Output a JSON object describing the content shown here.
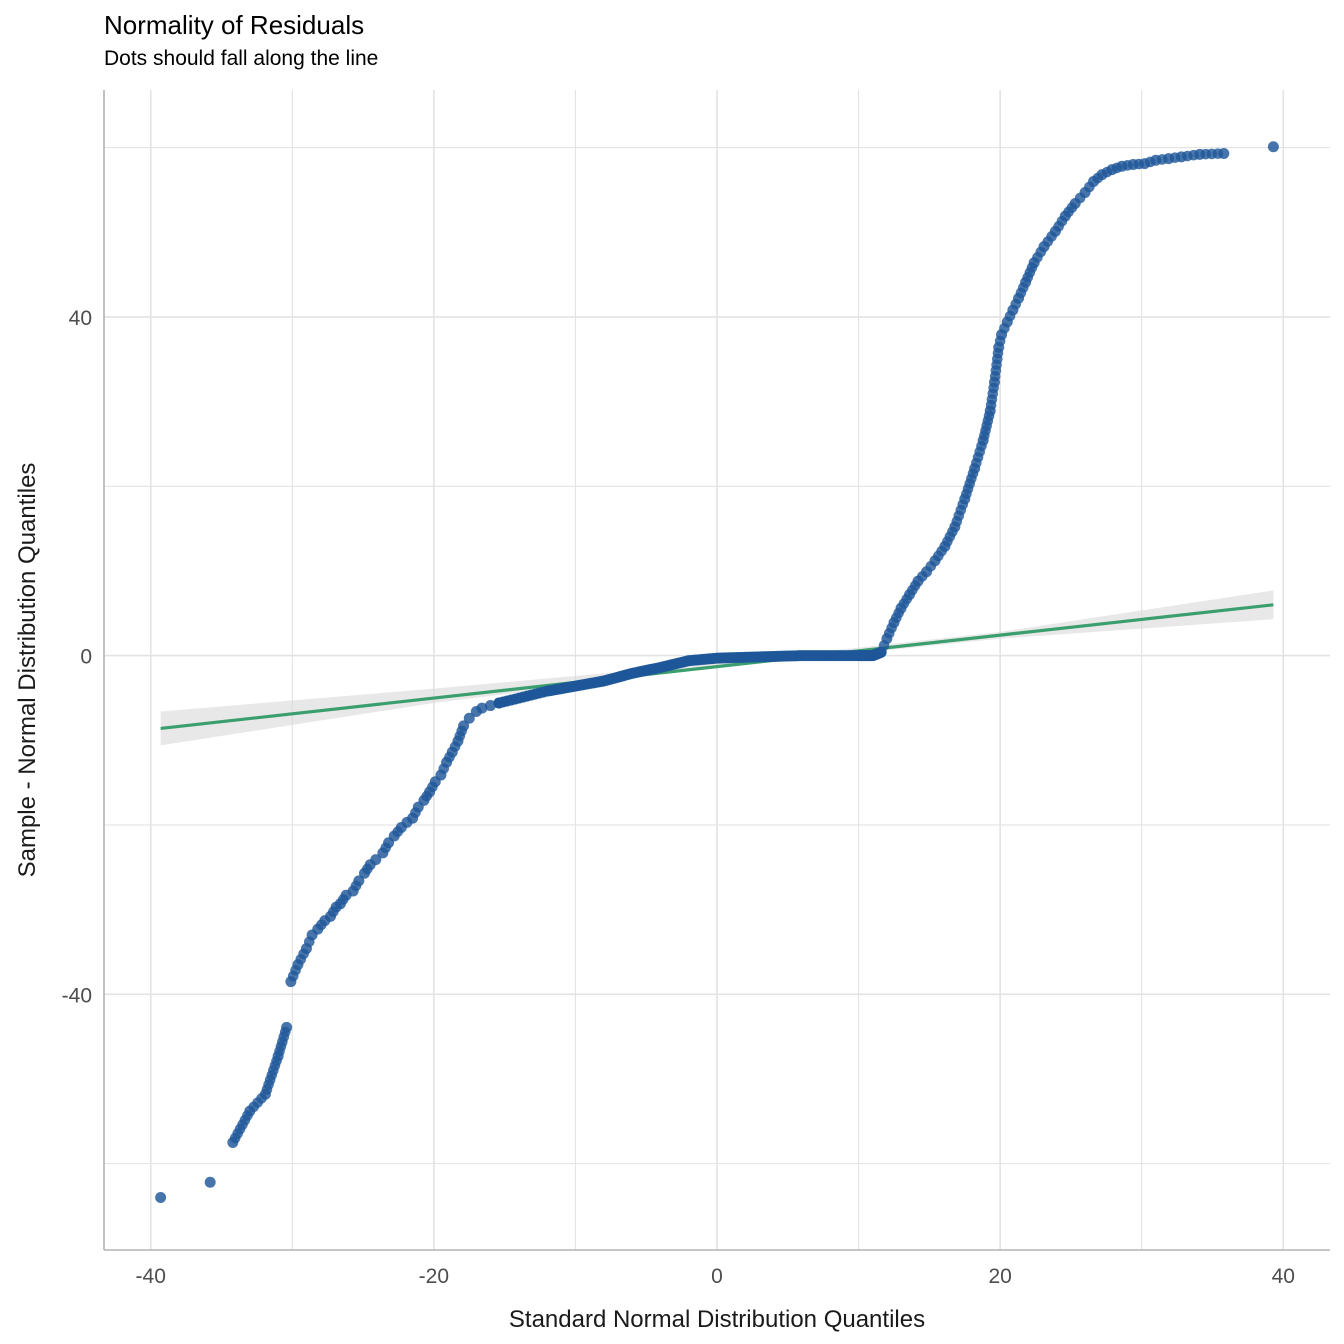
{
  "chart_data": {
    "type": "scatter",
    "title": "Normality of Residuals",
    "subtitle": "Dots should fall along the line",
    "xlabel": "Standard Normal Distribution Quantiles",
    "ylabel": "Sample - Normal Distribution Quantiles",
    "xlim": [
      -43.3,
      43.3
    ],
    "ylim": [
      -70.2,
      66.8
    ],
    "x_ticks": [
      -40,
      -20,
      0,
      20,
      40
    ],
    "x_tick_labels": [
      "-40",
      "-20",
      "0",
      "20",
      "40"
    ],
    "y_ticks": [
      -40,
      0,
      40
    ],
    "y_tick_labels": [
      "-40",
      "0",
      "40"
    ],
    "grid": true,
    "colors": {
      "points": "#1f5799",
      "line": "#3a9e6e",
      "band": "#d9d9d9",
      "grid": "#e3e3e3",
      "axis": "#b3b3b3"
    },
    "reference_line": {
      "x": [
        -39.3,
        39.3
      ],
      "y": [
        -8.6,
        6.0
      ]
    },
    "confidence_band": {
      "x": [
        -39.3,
        -20,
        0,
        20,
        39.3
      ],
      "lower": [
        -10.6,
        -5.6,
        -1.4,
        2.0,
        4.3
      ],
      "upper": [
        -6.6,
        -3.9,
        -0.9,
        2.8,
        7.7
      ]
    },
    "outlier_points": {
      "x": [
        -39.3,
        -35.8,
        -34.2,
        -33.0,
        -31.9,
        -31.0,
        -30.4,
        -30.1,
        -29.6,
        -29.0,
        -28.6,
        -28.2,
        -27.7,
        -27.3,
        -26.9,
        -26.6,
        -26.2,
        -25.7,
        -25.3,
        -24.9,
        -24.5,
        -24.1,
        -23.6,
        -23.2,
        -22.8,
        -22.3,
        -21.9,
        -21.5,
        -21.1,
        -20.7,
        -20.3,
        -19.9,
        -19.5,
        -19.1,
        -18.7,
        -18.3,
        -17.9,
        -17.5,
        -17.0,
        -16.6,
        -16.0,
        -15.4,
        11.6,
        12.0,
        12.5,
        13.0,
        13.6,
        14.2,
        14.8,
        15.4,
        16.1,
        16.8,
        17.5,
        18.2,
        18.8,
        19.3,
        19.6,
        19.9,
        20.1,
        20.5,
        20.9,
        21.3,
        21.8,
        22.4,
        23.1,
        23.9,
        24.6,
        25.3,
        26.0,
        26.6,
        27.2,
        27.9,
        28.6,
        29.4,
        30.2,
        31.0,
        31.9,
        32.8,
        34.1,
        35.8,
        39.3
      ],
      "y": [
        -64.0,
        -62.2,
        -57.5,
        -53.8,
        -51.8,
        -47.3,
        -43.9,
        -38.5,
        -36.5,
        -34.6,
        -33.0,
        -32.3,
        -31.3,
        -30.8,
        -29.7,
        -29.3,
        -28.3,
        -27.8,
        -26.6,
        -25.7,
        -24.7,
        -24.1,
        -23.3,
        -22.1,
        -21.3,
        -20.3,
        -19.7,
        -19.2,
        -17.9,
        -17.1,
        -16.1,
        -14.9,
        -14.1,
        -12.6,
        -11.4,
        -10.1,
        -8.3,
        -7.4,
        -6.6,
        -6.2,
        -5.9,
        -5.6,
        0.4,
        2.0,
        3.9,
        5.6,
        7.2,
        8.8,
        9.9,
        11.2,
        12.9,
        15.2,
        18.5,
        22.1,
        25.4,
        28.9,
        32.3,
        36.4,
        37.9,
        39.4,
        40.8,
        42.2,
        44.1,
        46.4,
        48.3,
        50.1,
        51.9,
        53.4,
        54.7,
        56.0,
        56.8,
        57.4,
        57.8,
        58.0,
        58.1,
        58.5,
        58.7,
        58.9,
        59.2,
        59.3,
        60.1
      ]
    },
    "bulk_curve": {
      "x": [
        -15.4,
        -12.0,
        -10.0,
        -8.0,
        -6.0,
        -4.0,
        -2.0,
        0.0,
        2.0,
        4.0,
        6.0,
        8.0,
        10.0,
        11.0,
        11.6
      ],
      "y": [
        -5.6,
        -4.2,
        -3.6,
        -3.0,
        -2.1,
        -1.4,
        -0.6,
        -0.3,
        -0.2,
        -0.1,
        0.0,
        0.0,
        0.0,
        0.0,
        0.4
      ]
    }
  }
}
